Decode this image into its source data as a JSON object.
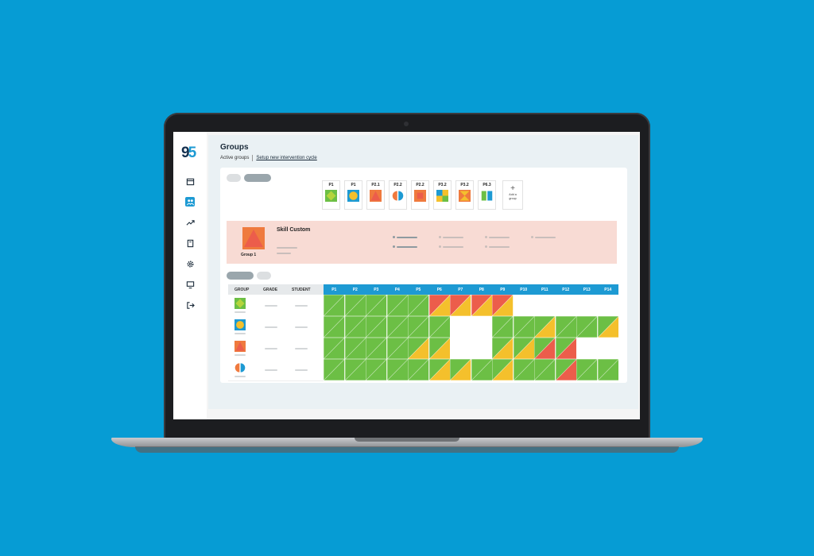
{
  "app": {
    "logo_text_a": "9",
    "logo_text_b": "5"
  },
  "sidebar": {
    "items": [
      {
        "icon": "calendar-icon",
        "active": false
      },
      {
        "icon": "groups-icon",
        "active": true
      },
      {
        "icon": "trend-icon",
        "active": false
      },
      {
        "icon": "book-icon",
        "active": false
      },
      {
        "icon": "gear-icon",
        "active": false
      },
      {
        "icon": "monitor-icon",
        "active": false
      },
      {
        "icon": "logout-icon",
        "active": false
      }
    ]
  },
  "page": {
    "title": "Groups",
    "tab_active": "Active groups",
    "setup_link": "Setup new intervention cycle"
  },
  "group_tiles": [
    {
      "label": "P1",
      "shape": "diamond"
    },
    {
      "label": "P1",
      "shape": "circle"
    },
    {
      "label": "P2.1",
      "shape": "triangle"
    },
    {
      "label": "P2.2",
      "shape": "halves"
    },
    {
      "label": "P2.2",
      "shape": "square"
    },
    {
      "label": "P3.2",
      "shape": "quad"
    },
    {
      "label": "P3.2",
      "shape": "hourglass"
    },
    {
      "label": "P6.3",
      "shape": "book"
    }
  ],
  "add_group": {
    "line1": "Add a",
    "line2": "group"
  },
  "selected_group": {
    "name": "Group 1",
    "title": "Skill Custom"
  },
  "table": {
    "headers": {
      "group": "GROUP",
      "grade": "GRADE",
      "student": "STUDENT"
    },
    "columns": [
      "P1",
      "P2",
      "P3",
      "P4",
      "P5",
      "P6",
      "P7",
      "P8",
      "P9",
      "P10",
      "P11",
      "P12",
      "P13",
      "P14"
    ],
    "rows": [
      {
        "shape": "diamond",
        "cells": [
          "G",
          "G",
          "G",
          "G",
          "G",
          "RY",
          "RY",
          "RY",
          "RY",
          "W",
          "W",
          "W",
          "W",
          "W"
        ]
      },
      {
        "shape": "circle",
        "cells": [
          "G",
          "G",
          "G",
          "G",
          "G",
          "G",
          "W",
          "W",
          "G",
          "G",
          "GY",
          "G",
          "G",
          "GY"
        ]
      },
      {
        "shape": "triangle",
        "cells": [
          "G",
          "G",
          "G",
          "G",
          "GY",
          "GY",
          "W",
          "W",
          "GY",
          "GY",
          "GR",
          "GR",
          "W",
          "W"
        ]
      },
      {
        "shape": "halves",
        "cells": [
          "G",
          "G",
          "G",
          "G",
          "G",
          "GY",
          "GY",
          "G",
          "GY",
          "G",
          "G",
          "GR",
          "G",
          "G"
        ]
      }
    ]
  },
  "colors": {
    "green": "#6cbf45",
    "yellow": "#f4c02c",
    "red": "#ec5d4b",
    "blue": "#1d9ad3",
    "orange": "#ef7a3e",
    "navy": "#14304f",
    "selected_bg": "#f8dbd4"
  }
}
